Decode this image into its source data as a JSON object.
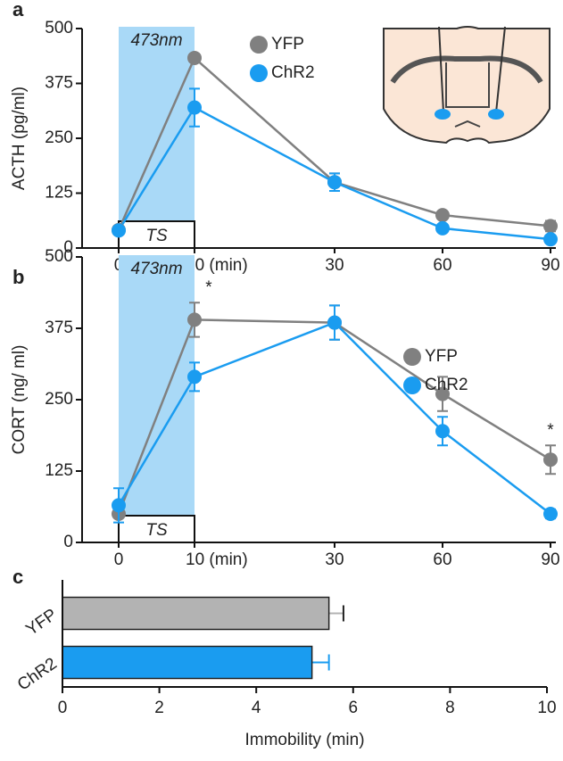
{
  "chart_data": [
    {
      "type": "line",
      "panel_label": "a",
      "y_label": "ACTH (pg/ml)",
      "categories": [
        "0",
        "10 (min)",
        "30",
        "60",
        "90"
      ],
      "ylim": [
        0,
        500
      ],
      "yticks": [
        0,
        125,
        250,
        375,
        500
      ],
      "stimulus_label": "473nm",
      "stimulus_color": "#a9d9f7",
      "period_label": "TS",
      "series": [
        {
          "name": "YFP",
          "color": "#808080",
          "values": [
            41,
            433,
            150,
            75,
            50
          ],
          "errors": [
            5,
            5,
            20,
            6,
            12
          ]
        },
        {
          "name": "ChR2",
          "color": "#1a9cf0",
          "values": [
            40,
            320,
            150,
            45,
            20
          ],
          "errors": [
            5,
            43,
            20,
            8,
            8
          ]
        }
      ]
    },
    {
      "type": "line",
      "panel_label": "b",
      "y_label": "CORT (ng/ ml)",
      "categories": [
        "0",
        "10 (min)",
        "30",
        "60",
        "90"
      ],
      "ylim": [
        0,
        500
      ],
      "yticks": [
        0,
        125,
        250,
        375,
        500
      ],
      "stimulus_label": "473nm",
      "stimulus_color": "#a9d9f7",
      "period_label": "TS",
      "series": [
        {
          "name": "YFP",
          "color": "#808080",
          "values": [
            50,
            390,
            385,
            260,
            145
          ],
          "errors": [
            5,
            30,
            30,
            30,
            25
          ]
        },
        {
          "name": "ChR2",
          "color": "#1a9cf0",
          "values": [
            65,
            290,
            385,
            195,
            50
          ],
          "errors": [
            30,
            25,
            30,
            25,
            8
          ]
        }
      ],
      "annotations": [
        {
          "text": "*",
          "x": "10 (min)"
        },
        {
          "text": "*",
          "x": "90"
        }
      ]
    },
    {
      "type": "hbar",
      "panel_label": "c",
      "x_label": "Immobility (min)",
      "categories": [
        "YFP",
        "ChR2"
      ],
      "values": [
        5.5,
        5.15
      ],
      "errors": [
        0.3,
        0.35
      ],
      "colors": [
        "#b3b3b3",
        "#1a9cf0"
      ],
      "xlim": [
        0,
        10
      ],
      "xticks": [
        0,
        2,
        4,
        6,
        8,
        10
      ]
    }
  ]
}
